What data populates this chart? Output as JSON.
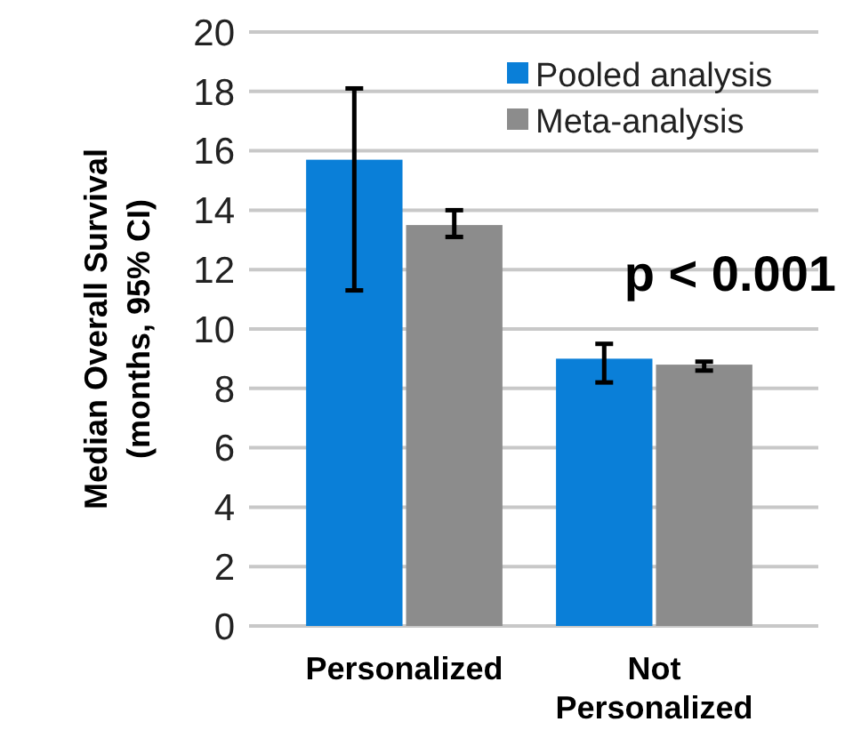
{
  "chart_data": {
    "type": "bar",
    "ylabel": "Median Overall Survival (months, 95% CI)",
    "categories": [
      "Personalized",
      "Not Personalized"
    ],
    "series": [
      {
        "name": "Pooled analysis",
        "color": "#0a7fd8",
        "values": [
          15.7,
          9.0
        ],
        "errors": [
          [
            11.3,
            18.1
          ],
          [
            8.2,
            9.5
          ]
        ]
      },
      {
        "name": "Meta-analysis",
        "color": "#8c8c8c",
        "values": [
          13.5,
          8.8
        ],
        "errors": [
          [
            13.1,
            14.0
          ],
          [
            8.6,
            8.9
          ]
        ]
      }
    ],
    "ylim": [
      0,
      20
    ],
    "yticks": [
      0,
      2,
      4,
      6,
      8,
      10,
      12,
      14,
      16,
      18,
      20
    ],
    "grid": "y",
    "legend": "top right",
    "annotations": [
      "p < 0.001"
    ]
  }
}
